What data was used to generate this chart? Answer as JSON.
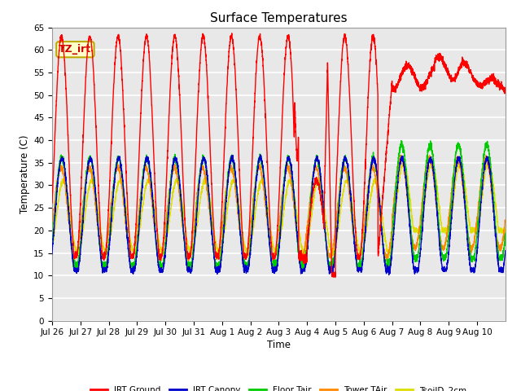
{
  "title": "Surface Temperatures",
  "xlabel": "Time",
  "ylabel": "Temperature (C)",
  "annotation_text": "TZ_irt",
  "annotation_bg": "#ffffcc",
  "annotation_border": "#bbaa00",
  "ylim": [
    0,
    65
  ],
  "yticks": [
    0,
    5,
    10,
    15,
    20,
    25,
    30,
    35,
    40,
    45,
    50,
    55,
    60,
    65
  ],
  "plot_bg": "#e8e8e8",
  "line_colors": {
    "IRT Ground": "#ff0000",
    "IRT Canopy": "#0000cc",
    "Floor Tair": "#00cc00",
    "Tower TAir": "#ff8800",
    "TsoilD_2cm": "#dddd00"
  },
  "x_tick_labels": [
    "Jul 26",
    "Jul 27",
    "Jul 28",
    "Jul 29",
    "Jul 30",
    "Jul 31",
    "Aug 1",
    "Aug 2",
    "Aug 3",
    "Aug 4",
    "Aug 5",
    "Aug 6",
    "Aug 7",
    "Aug 8",
    "Aug 9",
    "Aug 10"
  ],
  "num_days": 16,
  "figwidth": 6.4,
  "figheight": 4.8,
  "dpi": 100
}
